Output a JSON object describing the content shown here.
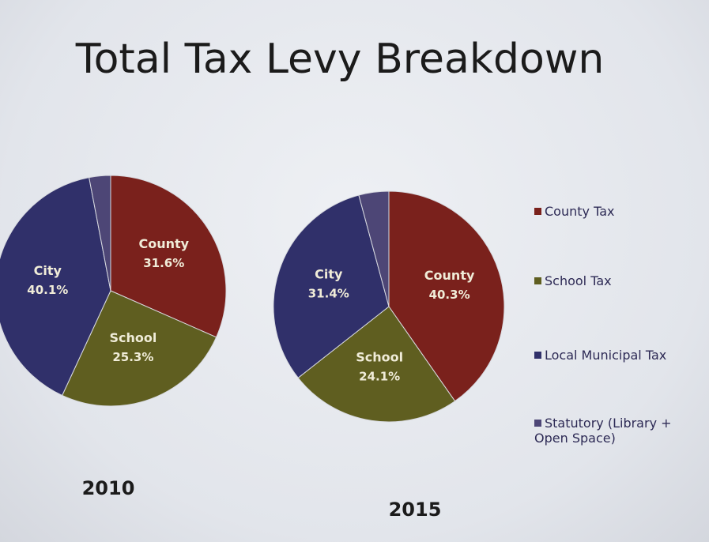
{
  "title": "Total Tax Levy Breakdown",
  "legend": [
    {
      "name": "County Tax",
      "color": "#7a211c"
    },
    {
      "name": "School Tax",
      "color": "#5f5e20"
    },
    {
      "name": "Local Municipal Tax",
      "color": "#30306a"
    },
    {
      "name": "Statutory (Library + Open Space)",
      "color": "#4d4676"
    }
  ],
  "chart_data": [
    {
      "type": "pie",
      "title": "2010",
      "categories": [
        "County",
        "School",
        "City",
        null
      ],
      "values": [
        31.6,
        25.3,
        40.1,
        3.0
      ],
      "value_labels": [
        "31.6%",
        "25.3%",
        "40.1%",
        null
      ]
    },
    {
      "type": "pie",
      "title": "2015",
      "categories": [
        "County",
        "School",
        "City",
        null
      ],
      "values": [
        40.3,
        24.1,
        31.4,
        4.2
      ],
      "value_labels": [
        "40.3%",
        "24.1%",
        "31.4%",
        null
      ]
    }
  ]
}
